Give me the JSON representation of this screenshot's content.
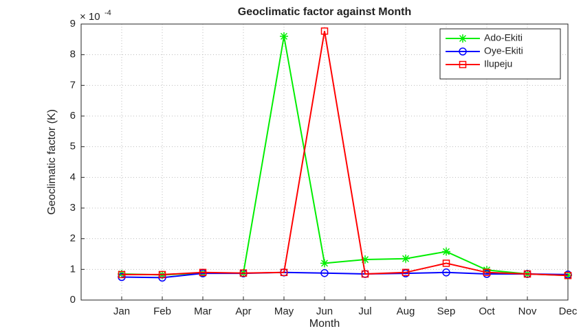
{
  "chart_data": {
    "type": "line",
    "title": "Geoclimatic factor against  Month",
    "x_label": "Month",
    "y_label": "Geoclimatic factor (K)",
    "y_multiplier": {
      "base": "× 10",
      "exponent": "-4"
    },
    "categories": [
      "Jan",
      "Feb",
      "Mar",
      "Apr",
      "May",
      "Jun",
      "Jul",
      "Aug",
      "Sep",
      "Oct",
      "Nov",
      "Dec"
    ],
    "series": [
      {
        "name": "Ado-Ekiti",
        "color": "#00ee00",
        "marker": "asterisk",
        "values": [
          0.85,
          0.82,
          0.88,
          0.88,
          8.6,
          1.2,
          1.32,
          1.35,
          1.58,
          0.98,
          0.85,
          0.8
        ]
      },
      {
        "name": "Oye-Ekiti",
        "color": "#0000ff",
        "marker": "circle",
        "values": [
          0.75,
          0.73,
          0.87,
          0.87,
          0.9,
          0.88,
          0.85,
          0.87,
          0.9,
          0.85,
          0.85,
          0.83
        ]
      },
      {
        "name": "Ilupeju",
        "color": "#ff0000",
        "marker": "square",
        "values": [
          0.83,
          0.83,
          0.9,
          0.88,
          0.9,
          8.77,
          0.85,
          0.9,
          1.2,
          0.9,
          0.85,
          0.8
        ]
      }
    ],
    "ylim": [
      0,
      9
    ],
    "yticks": [
      0,
      1,
      2,
      3,
      4,
      5,
      6,
      7,
      8,
      9
    ],
    "grid": true,
    "legend": "top-right"
  }
}
